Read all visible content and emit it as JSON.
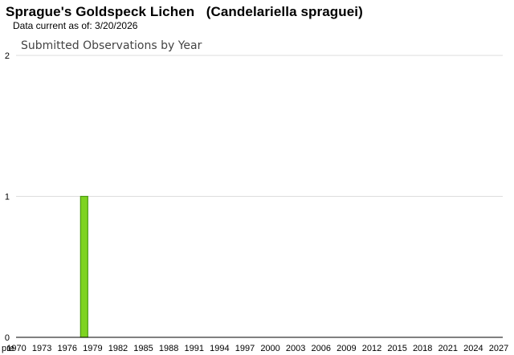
{
  "header": {
    "title": "Sprague's Goldspeck Lichen   (Candelariella spraguei)",
    "subtitle": "Data current as of: 3/20/2026"
  },
  "chart_data": {
    "type": "bar",
    "title": "Submitted Observations by Year",
    "xlabel": "",
    "ylabel": "",
    "ylim": [
      0,
      2
    ],
    "yticks": [
      0,
      1,
      2
    ],
    "grid": true,
    "legend": "none",
    "categories": [
      "pre",
      "1970",
      "1971",
      "1972",
      "1973",
      "1974",
      "1975",
      "1976",
      "1977",
      "1978",
      "1979",
      "1980",
      "1981",
      "1982",
      "1983",
      "1984",
      "1985",
      "1986",
      "1987",
      "1988",
      "1989",
      "1990",
      "1991",
      "1992",
      "1993",
      "1994",
      "1995",
      "1996",
      "1997",
      "1998",
      "1999",
      "2000",
      "2001",
      "2002",
      "2003",
      "2004",
      "2005",
      "2006",
      "2007",
      "2008",
      "2009",
      "2010",
      "2011",
      "2012",
      "2013",
      "2014",
      "2015",
      "2016",
      "2017",
      "2018",
      "2019",
      "2020",
      "2021",
      "2022",
      "2023",
      "2024",
      "2025",
      "2026",
      "2027"
    ],
    "tick_labels": [
      "pre",
      "1970",
      "1973",
      "1976",
      "1979",
      "1982",
      "1985",
      "1988",
      "1991",
      "1994",
      "1997",
      "2000",
      "2003",
      "2006",
      "2009",
      "2012",
      "2015",
      "2018",
      "2021",
      "2024",
      "2027"
    ],
    "values": [
      0,
      0,
      0,
      0,
      0,
      0,
      0,
      0,
      0,
      1,
      0,
      0,
      0,
      0,
      0,
      0,
      0,
      0,
      0,
      0,
      0,
      0,
      0,
      0,
      0,
      0,
      0,
      0,
      0,
      0,
      0,
      0,
      0,
      0,
      0,
      0,
      0,
      0,
      0,
      0,
      0,
      0,
      0,
      0,
      0,
      0,
      0,
      0,
      0,
      0,
      0,
      0,
      0,
      0,
      0,
      0,
      0,
      0,
      0
    ],
    "colors": {
      "bar_fill": "#7ed321",
      "bar_stroke": "#4a9a10",
      "grid": "#dddddd",
      "axis": "#000000"
    }
  }
}
